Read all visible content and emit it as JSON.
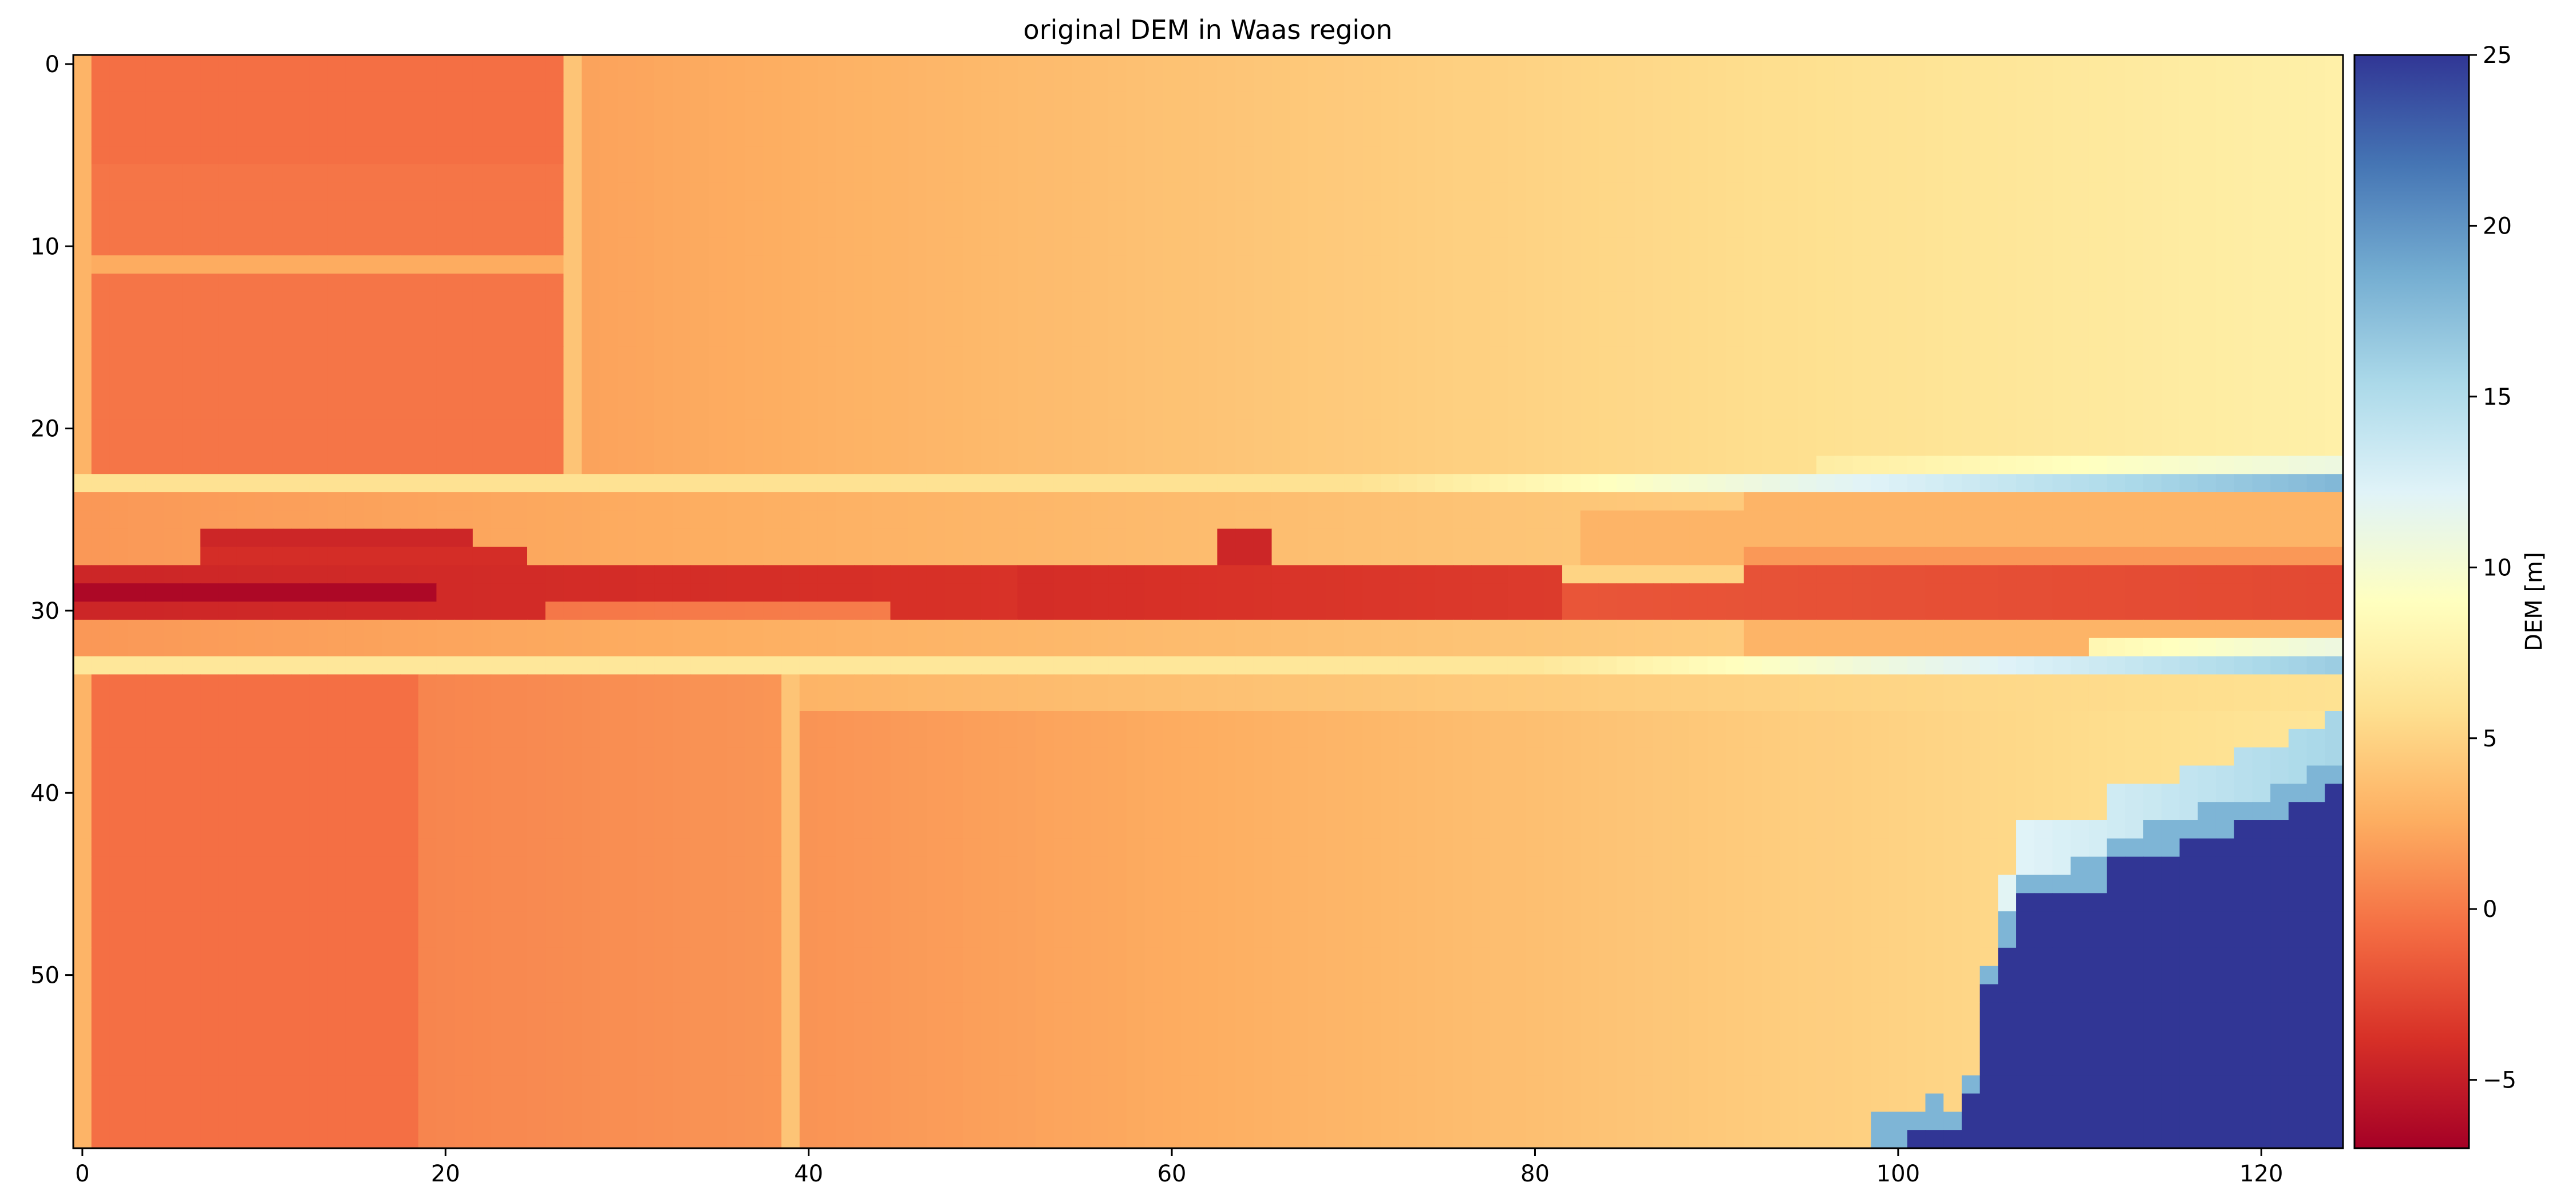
{
  "chart_data": {
    "type": "heatmap",
    "title": "original DEM in Waas region",
    "xlabel": "",
    "ylabel": "",
    "grid": false,
    "colormap": "RdYlBu",
    "colorbar": {
      "label": "DEM [m]",
      "range": [
        -7,
        25
      ],
      "ticks": [
        -5,
        0,
        5,
        10,
        15,
        20,
        25
      ],
      "tick_labels": [
        "−5",
        "0",
        "5",
        "10",
        "15",
        "20",
        "25"
      ]
    },
    "columns": 125,
    "rows": 60,
    "xlim": [
      -0.5,
      124.5
    ],
    "ylim": [
      59.5,
      -0.5
    ],
    "xticks": [
      0,
      20,
      40,
      60,
      80,
      100,
      120
    ],
    "yticks": [
      0,
      10,
      20,
      30,
      40,
      50
    ],
    "features": [
      {
        "name": "road-north",
        "row": 23,
        "from_value": 6,
        "to_value": 18
      },
      {
        "name": "road-south",
        "row": 33,
        "from_value": 6,
        "to_value": 16
      },
      {
        "name": "low-channel",
        "rows": [
          27,
          30
        ],
        "min_value": -6.5
      },
      {
        "name": "water-body",
        "col_start": 98,
        "row_start": 39,
        "value": 25
      }
    ]
  }
}
